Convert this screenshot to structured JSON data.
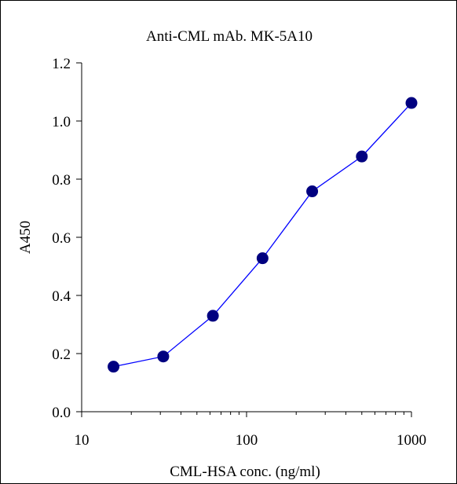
{
  "chart_data": {
    "type": "line",
    "title": "Anti-CML mAb. MK-5A10",
    "xlabel": "CML-HSA conc. (ng/ml)",
    "ylabel": "A450",
    "x_scale": "log",
    "xlim": [
      10,
      1000
    ],
    "ylim": [
      0,
      1.2
    ],
    "x_ticks": [
      10,
      100,
      1000
    ],
    "x_tick_labels": [
      "10",
      "100",
      "1000"
    ],
    "y_ticks": [
      0,
      0.2,
      0.4,
      0.6,
      0.8,
      1.0,
      1.2
    ],
    "y_tick_labels": [
      "0.0",
      "0.2",
      "0.4",
      "0.6",
      "0.8",
      "1.0",
      "1.2"
    ],
    "grid": false,
    "legend": "none",
    "series": [
      {
        "color": "#0000FF",
        "marker_color": "#000080",
        "x": [
          15.6,
          31.25,
          62.5,
          125,
          250,
          500,
          1000
        ],
        "y": [
          0.155,
          0.19,
          0.33,
          0.528,
          0.758,
          0.878,
          1.062
        ]
      }
    ]
  }
}
